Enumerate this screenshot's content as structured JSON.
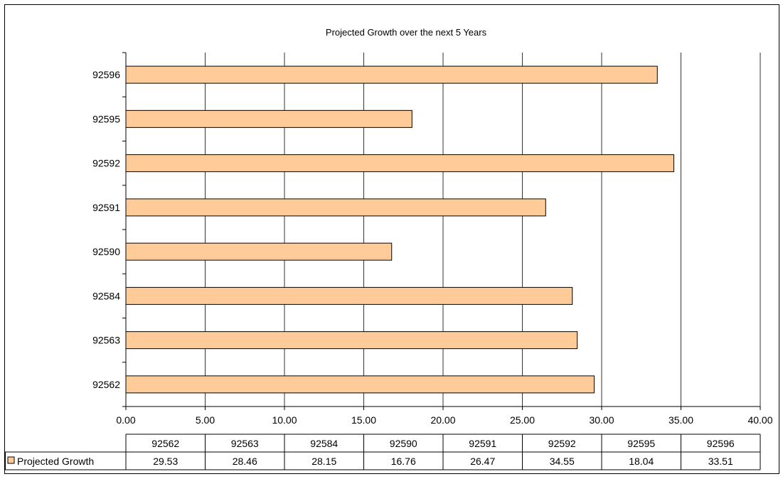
{
  "chart_data": {
    "type": "bar",
    "orientation": "horizontal",
    "title": "Projected Growth over the next 5 Years",
    "categories": [
      "92562",
      "92563",
      "92584",
      "92590",
      "92591",
      "92592",
      "92595",
      "92596"
    ],
    "series": [
      {
        "name": "Projected Growth",
        "values": [
          29.53,
          28.46,
          28.15,
          16.76,
          26.47,
          34.55,
          18.04,
          33.51
        ],
        "value_labels": [
          "29.53",
          "28.46",
          "28.15",
          "16.76",
          "26.47",
          "34.55",
          "18.04",
          "33.51"
        ],
        "color": "#FFCC99"
      }
    ],
    "xlim": [
      0,
      40
    ],
    "x_ticks": [
      0,
      5,
      10,
      15,
      20,
      25,
      30,
      35,
      40
    ],
    "x_tick_labels": [
      "0.00",
      "5.00",
      "10.00",
      "15.00",
      "20.00",
      "25.00",
      "30.00",
      "35.00",
      "40.00"
    ],
    "xlabel": "",
    "ylabel": "",
    "grid": "vertical",
    "legend": "data-table",
    "data_table": true,
    "category_order": "bottom-to-top"
  },
  "colors": {
    "bar_fill": "#FFCC99",
    "bar_stroke": "#000000",
    "grid": "#000000",
    "background": "#FFFFFF"
  }
}
